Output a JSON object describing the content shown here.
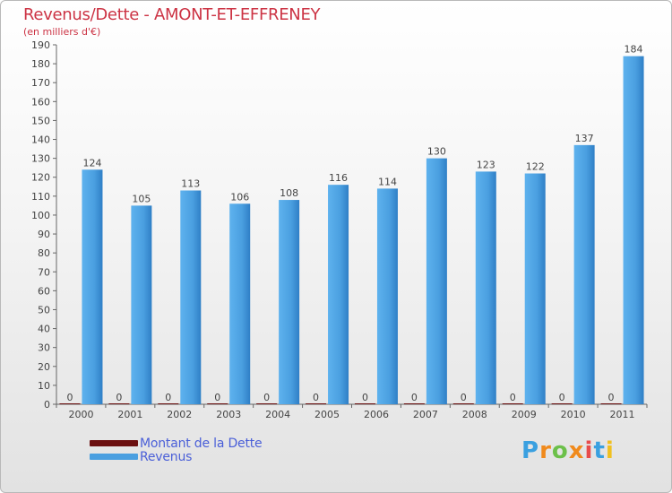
{
  "chart_data": {
    "type": "bar",
    "title": "Revenus/Dette - AMONT-ET-EFFRENEY",
    "subtitle": "(en milliers d'€)",
    "categories": [
      "2000",
      "2001",
      "2002",
      "2003",
      "2004",
      "2005",
      "2006",
      "2007",
      "2008",
      "2009",
      "2010",
      "2011"
    ],
    "series": [
      {
        "name": "Montant de la Dette",
        "color": "#6b0f0f",
        "values": [
          0,
          0,
          0,
          0,
          0,
          0,
          0,
          0,
          0,
          0,
          0,
          0
        ]
      },
      {
        "name": "Revenus",
        "color": "#4a9fe0",
        "values": [
          124,
          105,
          113,
          106,
          108,
          116,
          114,
          130,
          123,
          122,
          137,
          184
        ]
      }
    ],
    "ylim": [
      0,
      190
    ],
    "yticks": [
      0,
      10,
      20,
      30,
      40,
      50,
      60,
      70,
      80,
      90,
      100,
      110,
      120,
      130,
      140,
      150,
      160,
      170,
      180,
      190
    ],
    "grid": false,
    "legend_position": "bottom-left"
  },
  "logo": {
    "letters": [
      "P",
      "r",
      "o",
      "x",
      "i",
      "t",
      "i"
    ],
    "colors": [
      "#3aa0e0",
      "#f08a1c",
      "#6cc04a",
      "#f08a1c",
      "#e84b4b",
      "#3aa0e0",
      "#f0c020"
    ]
  }
}
